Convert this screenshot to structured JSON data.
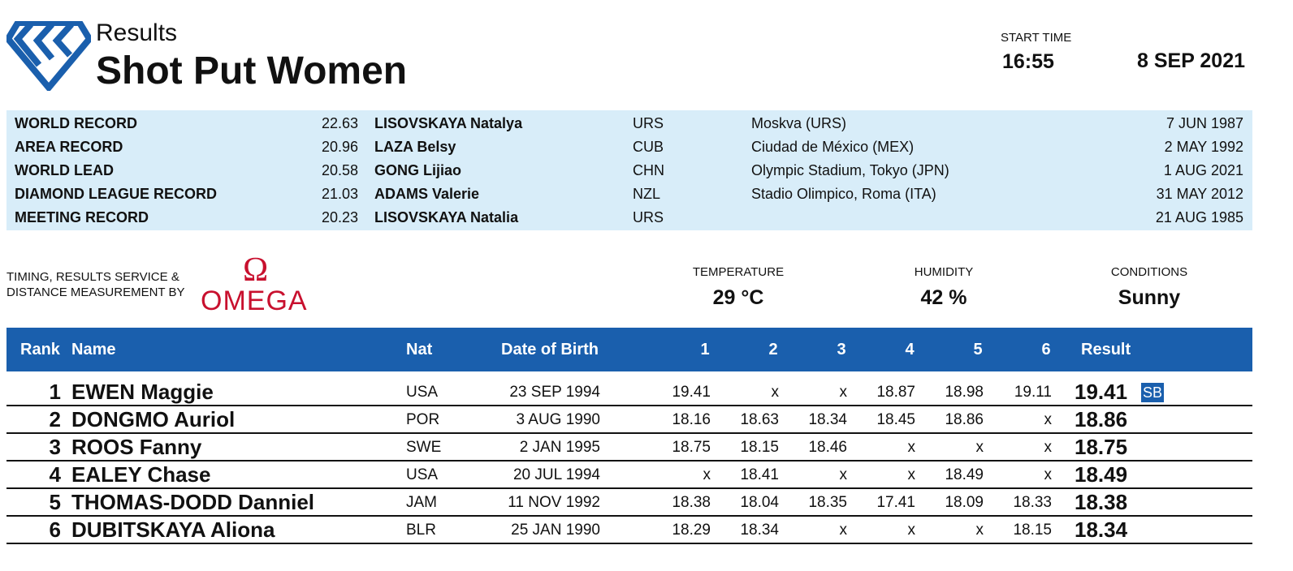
{
  "header": {
    "subtitle": "Results",
    "title": "Shot Put Women",
    "start_time_label": "START TIME",
    "start_time": "16:55",
    "date": "8 SEP 2021"
  },
  "records": [
    {
      "label": "WORLD RECORD",
      "mark": "22.63",
      "name": "LISOVSKAYA Natalya",
      "nat": "URS",
      "venue": "Moskva (URS)",
      "date": "7 JUN 1987"
    },
    {
      "label": "AREA RECORD",
      "mark": "20.96",
      "name": "LAZA Belsy",
      "nat": "CUB",
      "venue": "Ciudad de México (MEX)",
      "date": "2 MAY 1992"
    },
    {
      "label": "WORLD LEAD",
      "mark": "20.58",
      "name": "GONG Lijiao",
      "nat": "CHN",
      "venue": "Olympic Stadium, Tokyo (JPN)",
      "date": "1 AUG 2021"
    },
    {
      "label": "DIAMOND LEAGUE RECORD",
      "mark": "21.03",
      "name": "ADAMS Valerie",
      "nat": "NZL",
      "venue": "Stadio Olimpico, Roma (ITA)",
      "date": "31 MAY 2012"
    },
    {
      "label": "MEETING RECORD",
      "mark": "20.23",
      "name": "LISOVSKAYA Natalia",
      "nat": "URS",
      "date": "21 AUG 1985"
    }
  ],
  "timing": {
    "line1": "TIMING, RESULTS SERVICE &",
    "line2": "DISTANCE MEASUREMENT BY",
    "logo_symbol": "Ω",
    "logo": "OMEGA"
  },
  "conditions": [
    {
      "label": "TEMPERATURE",
      "value": "29 °C"
    },
    {
      "label": "HUMIDITY",
      "value": "42 %"
    },
    {
      "label": "CONDITIONS",
      "value": "Sunny"
    }
  ],
  "table": {
    "columns": [
      "Rank",
      "Name",
      "Nat",
      "Date of Birth",
      "1",
      "2",
      "3",
      "4",
      "5",
      "6",
      "Result"
    ],
    "rows": [
      {
        "rank": "1",
        "name": "EWEN Maggie",
        "nat": "USA",
        "dob": "23 SEP 1994",
        "attempts": [
          "19.41",
          "x",
          "x",
          "18.87",
          "18.98",
          "19.11"
        ],
        "result": "19.41",
        "note": "SB"
      },
      {
        "rank": "2",
        "name": "DONGMO Auriol",
        "nat": "POR",
        "dob": "3 AUG 1990",
        "attempts": [
          "18.16",
          "18.63",
          "18.34",
          "18.45",
          "18.86",
          "x"
        ],
        "result": "18.86"
      },
      {
        "rank": "3",
        "name": "ROOS Fanny",
        "nat": "SWE",
        "dob": "2 JAN 1995",
        "attempts": [
          "18.75",
          "18.15",
          "18.46",
          "x",
          "x",
          "x"
        ],
        "result": "18.75"
      },
      {
        "rank": "4",
        "name": "EALEY Chase",
        "nat": "USA",
        "dob": "20 JUL 1994",
        "attempts": [
          "x",
          "18.41",
          "x",
          "x",
          "18.49",
          "x"
        ],
        "result": "18.49"
      },
      {
        "rank": "5",
        "name": "THOMAS-DODD Danniel",
        "nat": "JAM",
        "dob": "11 NOV 1992",
        "attempts": [
          "18.38",
          "18.04",
          "18.35",
          "17.41",
          "18.09",
          "18.33"
        ],
        "result": "18.38"
      },
      {
        "rank": "6",
        "name": "DUBITSKAYA Aliona",
        "nat": "BLR",
        "dob": "25 JAN 1990",
        "attempts": [
          "18.29",
          "18.34",
          "x",
          "x",
          "x",
          "18.15"
        ],
        "result": "18.34"
      }
    ]
  }
}
